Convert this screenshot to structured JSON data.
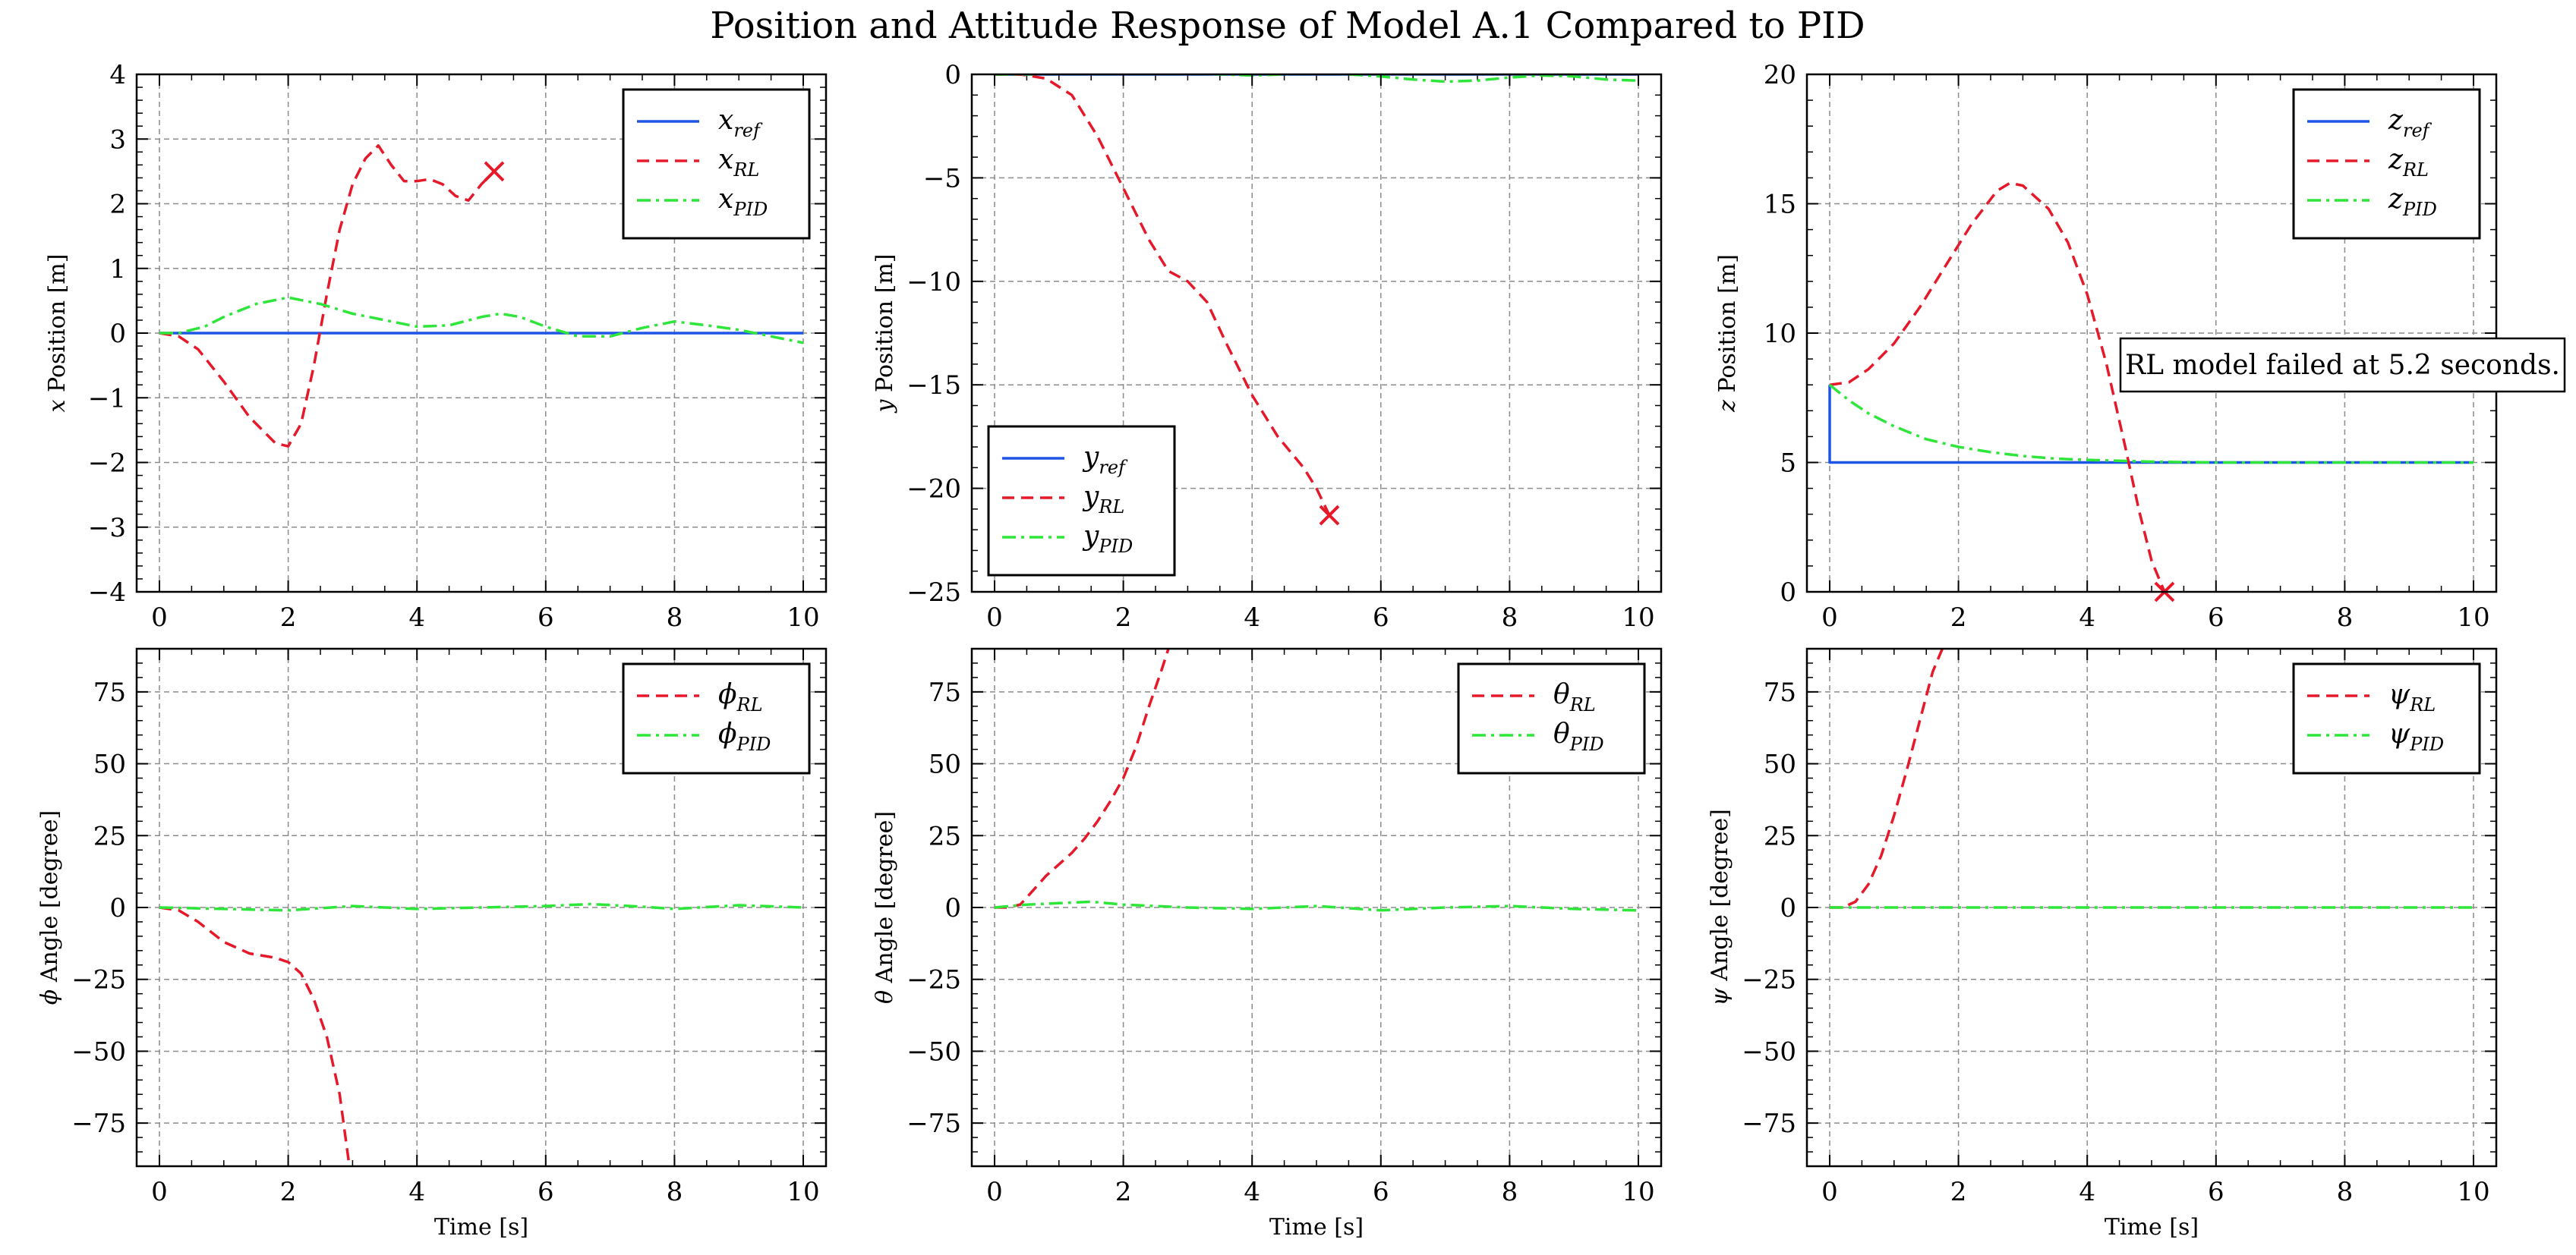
{
  "figure": {
    "title": "Position and Attitude Response of Model A.1 Compared to PID",
    "annotation": "RL model failed at 5.2 seconds.",
    "colors": {
      "ref": "#1f55e6",
      "rl": "#e6192b",
      "pid": "#2ee63a"
    }
  },
  "chart_data": [
    {
      "type": "line",
      "id": "x",
      "xlabel": "",
      "ylabel_sym": "x",
      "ylabel_rest": " Position [m]",
      "xlim": [
        0,
        10
      ],
      "ylim": [
        -4,
        4
      ],
      "xticks": [
        0,
        2,
        4,
        6,
        8,
        10
      ],
      "yticks": [
        -4,
        -3,
        -2,
        -1,
        0,
        1,
        2,
        3,
        4
      ],
      "legend": "top-right",
      "series": [
        {
          "name": "x",
          "sub": "ref",
          "kind": "ref",
          "x": [
            0,
            10
          ],
          "y": [
            0,
            0
          ]
        },
        {
          "name": "x",
          "sub": "RL",
          "kind": "rl",
          "end_marker": true,
          "x": [
            0,
            0.3,
            0.6,
            1.0,
            1.4,
            1.8,
            2.0,
            2.2,
            2.4,
            2.6,
            2.8,
            3.0,
            3.2,
            3.4,
            3.6,
            3.8,
            4.0,
            4.2,
            4.4,
            4.6,
            4.8,
            5.0,
            5.2
          ],
          "y": [
            0,
            -0.05,
            -0.25,
            -0.75,
            -1.3,
            -1.7,
            -1.75,
            -1.4,
            -0.5,
            0.6,
            1.6,
            2.3,
            2.7,
            2.9,
            2.6,
            2.35,
            2.35,
            2.38,
            2.3,
            2.12,
            2.05,
            2.3,
            2.5
          ]
        },
        {
          "name": "x",
          "sub": "PID",
          "kind": "pid",
          "x": [
            0,
            0.3,
            0.7,
            1.0,
            1.5,
            2.0,
            2.5,
            3.0,
            3.5,
            4.0,
            4.5,
            5.0,
            5.3,
            5.6,
            6.0,
            6.5,
            7.0,
            7.5,
            8.0,
            8.5,
            9.0,
            9.5,
            10
          ],
          "y": [
            0,
            0.0,
            0.1,
            0.25,
            0.45,
            0.55,
            0.45,
            0.3,
            0.2,
            0.1,
            0.12,
            0.25,
            0.3,
            0.25,
            0.1,
            -0.05,
            -0.05,
            0.08,
            0.18,
            0.12,
            0.05,
            -0.05,
            -0.15
          ]
        }
      ]
    },
    {
      "type": "line",
      "id": "y",
      "xlabel": "",
      "ylabel_sym": "y",
      "ylabel_rest": " Position [m]",
      "xlim": [
        0,
        10
      ],
      "ylim": [
        -25,
        0
      ],
      "xticks": [
        0,
        2,
        4,
        6,
        8,
        10
      ],
      "yticks": [
        -25,
        -20,
        -15,
        -10,
        -5,
        0
      ],
      "legend": "lower-left",
      "series": [
        {
          "name": "y",
          "sub": "ref",
          "kind": "ref",
          "x": [
            0,
            10
          ],
          "y": [
            0,
            0
          ]
        },
        {
          "name": "y",
          "sub": "RL",
          "kind": "rl",
          "end_marker": true,
          "x": [
            0,
            0.4,
            0.8,
            1.2,
            1.6,
            2.0,
            2.4,
            2.7,
            3.0,
            3.3,
            3.6,
            4.0,
            4.4,
            4.8,
            5.0,
            5.2
          ],
          "y": [
            0,
            0,
            -0.2,
            -1.0,
            -3.0,
            -5.5,
            -8.0,
            -9.5,
            -10.0,
            -11.0,
            -13.0,
            -15.5,
            -17.5,
            -19.0,
            -20.0,
            -21.3
          ]
        },
        {
          "name": "y",
          "sub": "PID",
          "kind": "pid",
          "x": [
            0,
            0.5,
            1.0,
            1.5,
            2.0,
            2.5,
            3.0,
            3.5,
            4.0,
            4.5,
            5.0,
            5.5,
            6.0,
            6.5,
            7.0,
            7.5,
            8.0,
            8.5,
            9.0,
            9.5,
            10
          ],
          "y": [
            0,
            0,
            0.05,
            0.2,
            0.35,
            0.25,
            0.05,
            0.0,
            -0.05,
            0.0,
            0.05,
            0.0,
            -0.1,
            -0.25,
            -0.35,
            -0.3,
            -0.15,
            -0.05,
            -0.1,
            -0.25,
            -0.3
          ]
        }
      ]
    },
    {
      "type": "line",
      "id": "z",
      "xlabel": "",
      "ylabel_sym": "z",
      "ylabel_rest": " Position [m]",
      "xlim": [
        0,
        10
      ],
      "ylim": [
        0,
        20
      ],
      "xticks": [
        0,
        2,
        4,
        6,
        8,
        10
      ],
      "yticks": [
        0,
        5,
        10,
        15,
        20
      ],
      "legend": "top-right",
      "series": [
        {
          "name": "z",
          "sub": "ref",
          "kind": "ref",
          "x": [
            0,
            0,
            10
          ],
          "y": [
            8,
            5,
            5
          ]
        },
        {
          "name": "z",
          "sub": "RL",
          "kind": "rl",
          "end_marker": true,
          "x": [
            0,
            0.3,
            0.6,
            1.0,
            1.4,
            1.8,
            2.2,
            2.6,
            2.8,
            3.0,
            3.4,
            3.7,
            4.0,
            4.3,
            4.6,
            4.8,
            5.0,
            5.2
          ],
          "y": [
            8.0,
            8.1,
            8.6,
            9.6,
            11.0,
            12.6,
            14.2,
            15.5,
            15.8,
            15.7,
            14.8,
            13.5,
            11.5,
            8.8,
            5.5,
            3.2,
            1.2,
            0.0
          ]
        },
        {
          "name": "z",
          "sub": "PID",
          "kind": "pid",
          "x": [
            0,
            0.3,
            0.6,
            1.0,
            1.5,
            2.0,
            2.5,
            3.0,
            3.5,
            4.0,
            5.0,
            6.0,
            7.0,
            8.0,
            9.0,
            10
          ],
          "y": [
            8.0,
            7.4,
            6.9,
            6.4,
            5.9,
            5.6,
            5.4,
            5.25,
            5.15,
            5.1,
            5.03,
            5.0,
            5.0,
            5.0,
            5.0,
            5.0
          ]
        }
      ]
    },
    {
      "type": "line",
      "id": "phi",
      "xlabel": "Time [s]",
      "ylabel_sym": "ϕ",
      "ylabel_rest": " Angle [degree]",
      "xlim": [
        0,
        10
      ],
      "ylim": [
        -90,
        90
      ],
      "xticks": [
        0,
        2,
        4,
        6,
        8,
        10
      ],
      "yticks": [
        -75,
        -50,
        -25,
        0,
        25,
        50,
        75
      ],
      "legend": "top-right",
      "series": [
        {
          "name": "ϕ",
          "sub": "RL",
          "kind": "rl",
          "x": [
            0,
            0.3,
            0.6,
            1.0,
            1.4,
            1.8,
            2.0,
            2.2,
            2.4,
            2.6,
            2.8,
            2.95
          ],
          "y": [
            0,
            -1,
            -5,
            -12,
            -16,
            -17.5,
            -19,
            -23,
            -32,
            -45,
            -65,
            -90
          ]
        },
        {
          "name": "ϕ",
          "sub": "PID",
          "kind": "pid",
          "x": [
            0,
            1,
            2,
            3,
            4,
            5,
            6,
            6.7,
            7.5,
            8,
            9,
            10
          ],
          "y": [
            0,
            -0.5,
            -1,
            0.5,
            -0.5,
            0,
            0.5,
            1.2,
            0.3,
            -0.5,
            0.8,
            0
          ]
        }
      ]
    },
    {
      "type": "line",
      "id": "theta",
      "xlabel": "Time [s]",
      "ylabel_sym": "θ",
      "ylabel_rest": " Angle [degree]",
      "xlim": [
        0,
        10
      ],
      "ylim": [
        -90,
        90
      ],
      "xticks": [
        0,
        2,
        4,
        6,
        8,
        10
      ],
      "yticks": [
        -75,
        -50,
        -25,
        0,
        25,
        50,
        75
      ],
      "legend": "top-right",
      "series": [
        {
          "name": "θ",
          "sub": "RL",
          "kind": "rl",
          "x": [
            0,
            0.2,
            0.4,
            0.6,
            0.8,
            1.0,
            1.2,
            1.4,
            1.6,
            1.8,
            2.0,
            2.2,
            2.4,
            2.6,
            2.7
          ],
          "y": [
            0,
            0,
            1,
            6,
            11,
            15,
            19,
            24,
            30,
            37,
            45,
            56,
            70,
            83,
            90
          ]
        },
        {
          "name": "θ",
          "sub": "PID",
          "kind": "pid",
          "x": [
            0,
            0.5,
            1.0,
            1.5,
            2.0,
            3,
            4,
            5,
            6,
            7,
            8,
            9,
            10
          ],
          "y": [
            0,
            1,
            1.5,
            2,
            1,
            0,
            -0.5,
            0.5,
            -1,
            0,
            0.5,
            -0.5,
            -1
          ]
        }
      ]
    },
    {
      "type": "line",
      "id": "psi",
      "xlabel": "Time [s]",
      "ylabel_sym": "ψ",
      "ylabel_rest": " Angle [degree]",
      "xlim": [
        0,
        10
      ],
      "ylim": [
        -90,
        90
      ],
      "xticks": [
        0,
        2,
        4,
        6,
        8,
        10
      ],
      "yticks": [
        -75,
        -50,
        -25,
        0,
        25,
        50,
        75
      ],
      "legend": "top-right",
      "series": [
        {
          "name": "ψ",
          "sub": "RL",
          "kind": "rl",
          "x": [
            0,
            0.2,
            0.4,
            0.6,
            0.8,
            1.0,
            1.2,
            1.4,
            1.6,
            1.75
          ],
          "y": [
            0,
            0,
            2,
            8,
            18,
            32,
            48,
            65,
            82,
            90
          ]
        },
        {
          "name": "ψ",
          "sub": "PID",
          "kind": "pid",
          "x": [
            0,
            10
          ],
          "y": [
            0,
            0
          ]
        }
      ]
    }
  ]
}
